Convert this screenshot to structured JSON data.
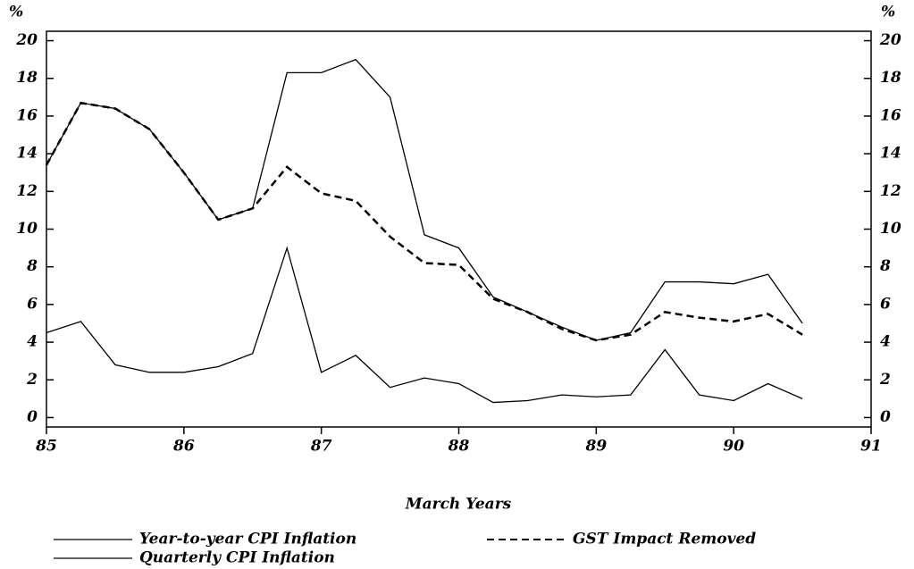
{
  "chart_data": {
    "type": "line",
    "ylabel": "%",
    "xlabel": "March Years",
    "x": [
      85,
      85.25,
      85.5,
      85.75,
      86,
      86.25,
      86.5,
      86.75,
      87,
      87.25,
      87.5,
      87.75,
      88,
      88.25,
      88.5,
      88.75,
      89,
      89.25,
      89.5,
      89.75,
      90,
      90.25,
      90.5
    ],
    "series": [
      {
        "name": "Year-to-year CPI Inflation",
        "color": "#000000",
        "dash": false,
        "values": [
          13.4,
          16.7,
          16.4,
          15.3,
          13.0,
          10.5,
          11.1,
          18.3,
          18.3,
          19.0,
          17.0,
          9.7,
          9.0,
          6.4,
          5.6,
          4.8,
          4.1,
          4.5,
          7.2,
          7.2,
          7.1,
          7.6,
          5.0
        ]
      },
      {
        "name": "GST Impact Removed",
        "color": "#000000",
        "dash": true,
        "values": [
          13.4,
          16.7,
          16.4,
          15.3,
          13.0,
          10.5,
          11.1,
          13.3,
          11.9,
          11.5,
          9.6,
          8.2,
          8.1,
          6.3,
          5.6,
          4.7,
          4.1,
          4.4,
          5.6,
          5.3,
          5.1,
          5.5,
          4.4
        ]
      },
      {
        "name": "Quarterly CPI Inflation",
        "color": "#000000",
        "dash": false,
        "values": [
          4.5,
          5.1,
          2.8,
          2.4,
          2.4,
          2.7,
          3.4,
          9.0,
          2.4,
          3.3,
          1.6,
          2.1,
          1.8,
          0.8,
          0.9,
          1.2,
          1.1,
          1.2,
          3.6,
          1.2,
          0.9,
          1.8,
          1.0
        ]
      }
    ],
    "xlim": [
      85,
      91
    ],
    "xticks": [
      85,
      86,
      87,
      88,
      89,
      90,
      91
    ],
    "ylim": [
      -0.5,
      20.5
    ],
    "yticks": [
      0,
      2,
      4,
      6,
      8,
      10,
      12,
      14,
      16,
      18,
      20
    ],
    "grid": false,
    "legend": "bottom"
  }
}
